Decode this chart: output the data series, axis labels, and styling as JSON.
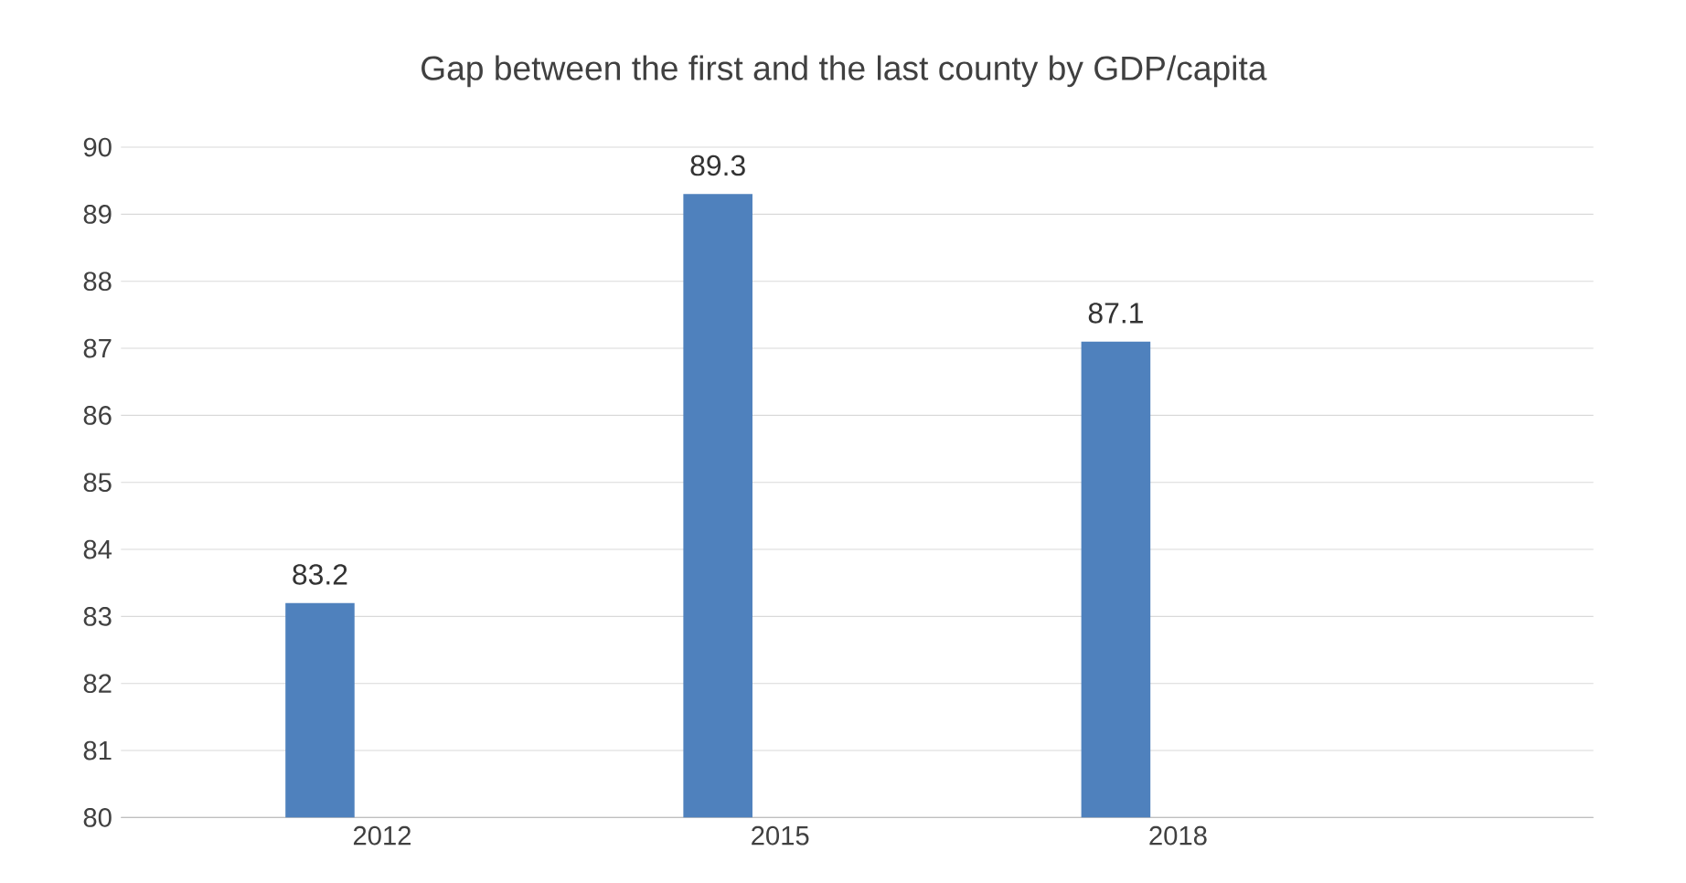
{
  "chart_data": {
    "type": "bar",
    "title": "Gap between the first and the last county by GDP/capita",
    "categories": [
      "2012",
      "2015",
      "2018"
    ],
    "values": [
      83.2,
      89.3,
      87.1
    ],
    "color": "#4f81bd",
    "ylim": [
      80,
      90
    ],
    "yticks": [
      80,
      81,
      82,
      83,
      84,
      85,
      86,
      87,
      88,
      89,
      90
    ],
    "grid": "y",
    "data_labels": true
  }
}
